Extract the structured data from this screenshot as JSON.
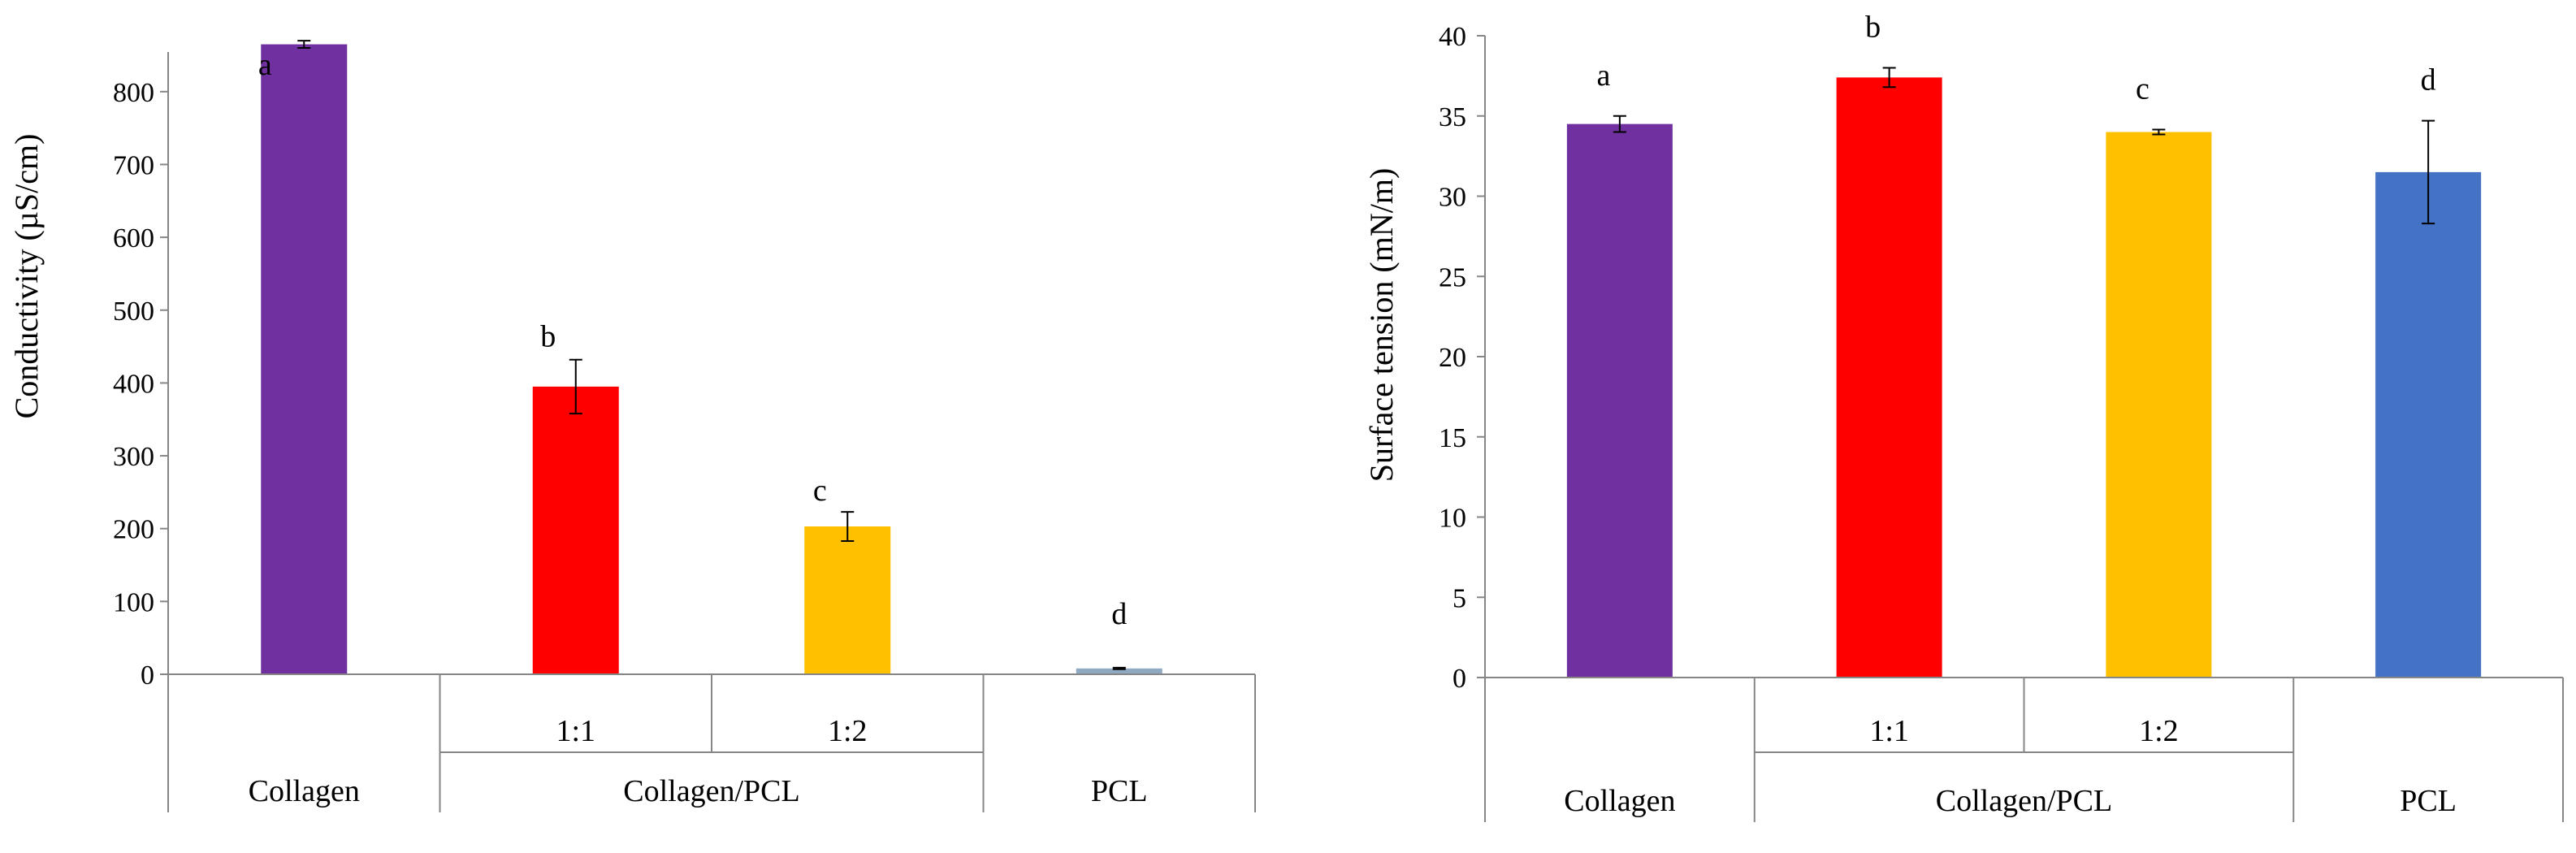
{
  "colors": {
    "collagen": "#7030A0",
    "ratio_1_1": "#FF0000",
    "ratio_1_2": "#FFC000",
    "pcl_left": "#8EA9C1",
    "pcl_right": "#4472C4",
    "axis": "#868686",
    "error_bar": "#000000"
  },
  "chart_data": [
    {
      "type": "bar",
      "title": "",
      "ylabel": "Conductivity (µS/cm)",
      "xlabel": "",
      "ylim": [
        0,
        850
      ],
      "yticks": [
        0,
        100,
        200,
        300,
        400,
        500,
        600,
        700,
        800
      ],
      "yticklabels": [
        "0",
        "100",
        "200",
        "300",
        "400",
        "500",
        "600",
        "700",
        "800"
      ],
      "categories": [
        "Collagen",
        "1:1",
        "1:2",
        "PCL"
      ],
      "values": [
        865,
        395,
        203,
        8
      ],
      "errors": [
        5,
        37,
        20,
        1
      ],
      "significance": [
        "a",
        "b",
        "c",
        "d"
      ],
      "bar_colors": [
        "collagen",
        "ratio_1_1",
        "ratio_1_2",
        "pcl_left"
      ],
      "group_labels": {
        "collagen": "Collagen",
        "ratio_1_1": "1:1",
        "ratio_1_2": "1:2",
        "collagen_pcl": "Collagen/PCL",
        "pcl": "PCL"
      }
    },
    {
      "type": "bar",
      "title": "",
      "ylabel": "Surface tension (mN/m)",
      "xlabel": "",
      "ylim": [
        0,
        40
      ],
      "yticks": [
        0,
        5,
        10,
        15,
        20,
        25,
        30,
        35,
        40
      ],
      "yticklabels": [
        "0",
        "5",
        "10",
        "15",
        "20",
        "25",
        "30",
        "35",
        "40"
      ],
      "categories": [
        "Collagen",
        "1:1",
        "1:2",
        "PCL"
      ],
      "values": [
        34.5,
        37.4,
        34.0,
        31.5
      ],
      "errors": [
        0.5,
        0.6,
        0.15,
        3.2
      ],
      "significance": [
        "a",
        "b",
        "c",
        "d"
      ],
      "bar_colors": [
        "collagen",
        "ratio_1_1",
        "ratio_1_2",
        "pcl_right"
      ],
      "group_labels": {
        "collagen": "Collagen",
        "ratio_1_1": "1:1",
        "ratio_1_2": "1:2",
        "collagen_pcl": "Collagen/PCL",
        "pcl": "PCL"
      }
    }
  ]
}
